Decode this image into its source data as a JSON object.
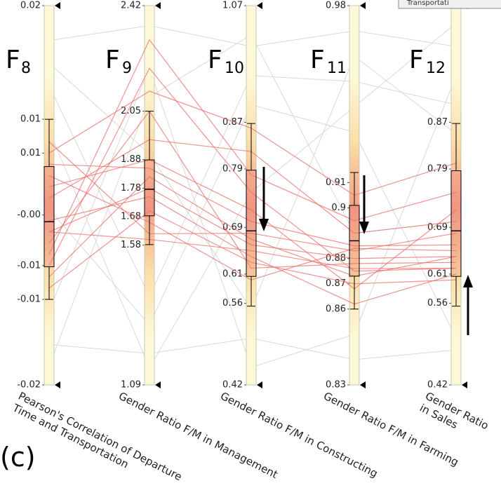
{
  "chart_data": {
    "type": "parallel",
    "tooltip": "Transportati",
    "panel_label": "(c)",
    "axes": [
      {
        "name": "F",
        "index": "8",
        "label": [
          "Pearson's Correlation of Departure",
          "Time and Transportation"
        ],
        "ylim": [
          -0.0156,
          0.0181
        ],
        "yticks": [
          {
            "value": 0.0181,
            "label": "0.02"
          },
          {
            "value": 0.008,
            "label": "0.01"
          },
          {
            "value": 0.005,
            "label": "0.01"
          },
          {
            "value": -0.0005,
            "label": "-0.00"
          },
          {
            "value": -0.005,
            "label": "-0.01"
          },
          {
            "value": -0.008,
            "label": "-0.01"
          },
          {
            "value": -0.0156,
            "label": "-0.02"
          }
        ],
        "box": {
          "min": -0.008,
          "q1": -0.0051,
          "median": -0.0011,
          "q3": 0.0038,
          "max": 0.008
        }
      },
      {
        "name": "F",
        "index": "9",
        "label": [
          "Gender Ratio F/M in Management"
        ],
        "ylim": [
          1.09,
          2.42
        ],
        "yticks": [
          2.42,
          2.05,
          1.88,
          1.78,
          1.68,
          1.58,
          1.09
        ],
        "box": {
          "min": 1.582,
          "q1": 1.683,
          "median": 1.776,
          "q3": 1.879,
          "max": 2.05
        }
      },
      {
        "name": "F",
        "index": "10",
        "label": [
          "Gender Ratio F/M in Constructing"
        ],
        "ylim": [
          0.42,
          1.07
        ],
        "yticks": [
          1.07,
          0.87,
          0.79,
          0.69,
          0.61,
          0.56,
          0.42
        ],
        "box": {
          "min": 0.555,
          "q1": 0.606,
          "median": 0.684,
          "q3": 0.788,
          "max": 0.868
        }
      },
      {
        "name": "F",
        "index": "11",
        "label": [
          "Gender Ratio F/M in Farming"
        ],
        "ylim": [
          0.83,
          0.98
        ],
        "yticks": [
          0.98,
          0.91,
          0.9,
          0.88,
          0.87,
          0.86,
          0.83
        ],
        "box": {
          "min": 0.86,
          "q1": 0.873,
          "median": 0.887,
          "q3": 0.901,
          "max": 0.914
        }
      },
      {
        "name": "F",
        "index": "12",
        "label": [
          "Gender Ratio",
          "in Sales"
        ],
        "ylim": [
          0.42,
          1.07
        ],
        "yticks": [
          1.07,
          0.87,
          0.79,
          0.69,
          0.61,
          0.56,
          0.42
        ],
        "box": {
          "min": 0.555,
          "q1": 0.606,
          "median": 0.684,
          "q3": 0.787,
          "max": 0.868
        }
      }
    ],
    "context": {
      "color": "#d9d9d9",
      "lines": [
        [
          0.015,
          2.35,
          1.0,
          0.97,
          1.0
        ],
        [
          -0.012,
          1.2,
          0.5,
          0.84,
          0.48
        ],
        [
          0.011,
          1.4,
          0.95,
          0.95,
          0.9
        ],
        [
          -0.009,
          2.2,
          0.45,
          0.85,
          0.95
        ],
        [
          0.0,
          1.3,
          0.9,
          0.93,
          0.5
        ],
        [
          0.013,
          1.9,
          0.55,
          0.96,
          0.85
        ],
        [
          -0.014,
          2.1,
          1.02,
          0.89,
          0.7
        ],
        [
          0.007,
          1.15,
          0.75,
          0.94,
          1.04
        ]
      ]
    },
    "series": [
      {
        "color": "#e8706a",
        "lines": [
          [
            0.004,
            1.85,
            0.7,
            0.885,
            0.66
          ],
          [
            -0.002,
            1.78,
            0.66,
            0.88,
            0.64
          ],
          [
            -0.005,
            2.2,
            0.75,
            0.875,
            0.62
          ],
          [
            0.001,
            1.95,
            0.82,
            0.89,
            0.7
          ],
          [
            -0.007,
            1.7,
            0.63,
            0.87,
            0.6
          ],
          [
            0.006,
            1.62,
            0.68,
            0.883,
            0.68
          ],
          [
            -0.003,
            2.05,
            0.62,
            0.878,
            0.63
          ],
          [
            0.002,
            1.88,
            0.72,
            0.868,
            0.72
          ],
          [
            -0.001,
            1.75,
            0.64,
            0.862,
            0.61
          ],
          [
            -0.004,
            2.3,
            0.78,
            0.895,
            0.75
          ],
          [
            0.003,
            1.66,
            0.6,
            0.884,
            0.65
          ],
          [
            -0.006,
            1.82,
            0.67,
            0.873,
            0.64
          ],
          [
            0.005,
            2.12,
            0.86,
            0.905,
            0.8
          ],
          [
            -0.002,
            1.6,
            0.65,
            0.876,
            0.62
          ]
        ]
      }
    ]
  }
}
